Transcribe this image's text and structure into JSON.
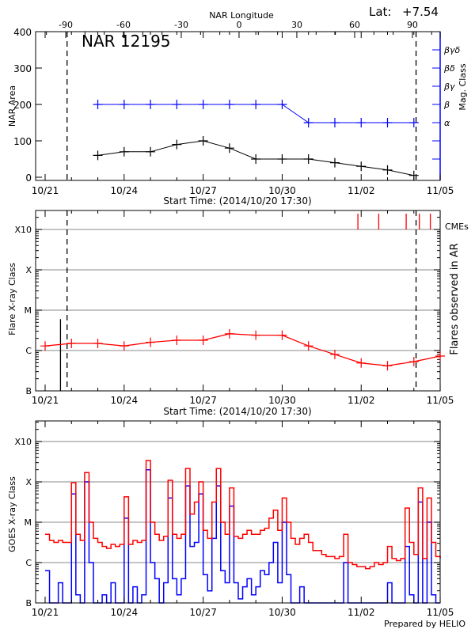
{
  "colors": {
    "axis": "#000000",
    "mag": "#0000ff",
    "flare": "#ff0000",
    "goes_long": "#ff0000",
    "goes_short": "#0000ff",
    "grid": "#a0a0a0"
  },
  "footer": "Prepared by HELIO",
  "chart_data": [
    {
      "type": "line",
      "title": "NAR 12195",
      "latitude_label": "Lat:",
      "latitude_value": "+7.54",
      "top_axis": {
        "label": "NAR Longitude",
        "ticks": [
          -90,
          -60,
          -30,
          0,
          30,
          60,
          90
        ],
        "tick_labels": [
          "-90",
          "-60",
          "-30",
          "0",
          "30",
          "60",
          "90"
        ]
      },
      "xlabel": "Start Time: (2014/10/20 17:30)",
      "x_tick_labels": [
        "10/21",
        "10/24",
        "10/27",
        "10/30",
        "11/02",
        "11/05"
      ],
      "ylabel": "NAR Area",
      "ylim": [
        0,
        400
      ],
      "y_tick_labels": [
        "0",
        "100",
        "200",
        "300",
        "400"
      ],
      "y2label": "Mag. Class",
      "y2_tick_labels": [
        "α",
        "β",
        "βγ",
        "βδ",
        "βγδ"
      ],
      "x": [
        "10/23",
        "10/24",
        "10/25",
        "10/26",
        "10/27",
        "10/28",
        "10/29",
        "10/30",
        "10/31",
        "11/01",
        "11/02",
        "11/03",
        "11/04"
      ],
      "series": [
        {
          "name": "NAR Area",
          "values": [
            60,
            70,
            70,
            90,
            100,
            80,
            50,
            50,
            50,
            40,
            30,
            20,
            5
          ]
        },
        {
          "name": "Mag. Class",
          "values": [
            "β",
            "β",
            "β",
            "β",
            "β",
            "β",
            "β",
            "β",
            "α",
            "α",
            "α",
            "α",
            "α"
          ]
        }
      ],
      "limb_markers": [
        "10/21 20:00",
        "11/04 02:00"
      ]
    },
    {
      "type": "line",
      "xlabel": "Start Time: (2014/10/20 17:30)",
      "x_tick_labels": [
        "10/21",
        "10/24",
        "10/27",
        "10/30",
        "11/02",
        "11/05"
      ],
      "ylabel": "Flare X-ray Class",
      "y2label": "Flares observed in AR",
      "y_scale": "log",
      "y_tick_labels": [
        "B",
        "C",
        "M",
        "X",
        "X10"
      ],
      "grid": true,
      "x": [
        "10/21",
        "10/22",
        "10/23",
        "10/24",
        "10/25",
        "10/26",
        "10/27",
        "10/28",
        "10/29",
        "10/30",
        "10/31",
        "11/01",
        "11/02",
        "11/03",
        "11/04",
        "11/05"
      ],
      "series": [
        {
          "values": [
            "C1.3",
            "C1.5",
            "C1.5",
            "C1.3",
            "C1.6",
            "C1.8",
            "C1.8",
            "C2.6",
            "C2.4",
            "C2.4",
            "C1.3",
            "B8.0",
            "B4.9",
            "B4.2",
            "B5.3",
            "B7.3"
          ]
        }
      ],
      "flares": [
        {
          "time": "10/21 14:00",
          "class": "C6"
        }
      ],
      "cme_label": "CMEs",
      "cmes": [
        "11/01 21:00",
        "11/02 16:00",
        "11/03 17:00",
        "11/04 05:00",
        "11/04 15:00"
      ],
      "limb_markers": [
        "10/21 20:00",
        "11/04 02:00"
      ]
    },
    {
      "type": "line",
      "ylabel": "GOES X-ray Class",
      "y_scale": "log",
      "y_tick_labels": [
        "B",
        "C",
        "M",
        "X",
        "X10"
      ],
      "grid": true,
      "x_tick_labels": [
        "10/21",
        "10/24",
        "10/27",
        "10/30",
        "11/02",
        "11/05"
      ],
      "x_start": "10/21 00:00",
      "x_step_hours": 4,
      "series": [
        {
          "name": "long",
          "log10_flux": [
            -5.3,
            -5.45,
            -5.5,
            -5.45,
            -5.5,
            -5.5,
            -4.02,
            -5.3,
            -5.45,
            -3.77,
            -5.0,
            -5.4,
            -5.5,
            -5.6,
            -5.65,
            -5.55,
            -5.6,
            -5.55,
            -4.37,
            -5.55,
            -5.45,
            -5.5,
            -5.45,
            -3.47,
            -5.0,
            -5.3,
            -5.45,
            -5.35,
            -3.96,
            -5.3,
            -5.4,
            -5.3,
            -3.67,
            -4.8,
            -4.5,
            -4.0,
            -5.2,
            -5.4,
            -4.5,
            -3.67,
            -5.0,
            -5.3,
            -4.15,
            -5.35,
            -5.4,
            -5.3,
            -5.2,
            -5.3,
            -5.3,
            -5.2,
            -5.15,
            -4.9,
            -4.7,
            -5.2,
            -4.4,
            -5.0,
            -5.4,
            -5.55,
            -5.4,
            -5.3,
            -5.5,
            -5.7,
            -5.7,
            -5.8,
            -5.85,
            -5.85,
            -5.9,
            -5.85,
            -5.3,
            -6.0,
            -6.05,
            -6.1,
            -6.1,
            -6.15,
            -6.1,
            -6.0,
            -6.05,
            -6.0,
            -5.6,
            -5.9,
            -5.95,
            -5.9,
            -4.65,
            -5.5,
            -5.8,
            -4.15,
            -5.9,
            -4.4,
            -5.5,
            -5.85,
            -5.9
          ]
        },
        {
          "name": "short",
          "log10_flux": [
            -6.2,
            -7,
            -7,
            -6.5,
            -7,
            -7,
            -4.3,
            -6.8,
            -7,
            -4.0,
            -6.0,
            -7,
            -7,
            -6.8,
            -7,
            -6.5,
            -7,
            -7,
            -4.9,
            -7,
            -6.6,
            -7,
            -6.8,
            -3.7,
            -6.0,
            -6.4,
            -7,
            -6.5,
            -4.4,
            -6.4,
            -6.8,
            -6.4,
            -4.1,
            -5.6,
            -5.5,
            -4.3,
            -6.3,
            -6.7,
            -5.4,
            -4.1,
            -6.2,
            -6.5,
            -4.6,
            -6.5,
            -6.9,
            -6.6,
            -6.4,
            -6.8,
            -6.6,
            -6.2,
            -6.3,
            -6.0,
            -5.5,
            -6.5,
            -5.0,
            -6.3,
            -7,
            -7,
            -6.6,
            -7,
            -7,
            -7,
            -7,
            -7,
            -7,
            -7,
            -7,
            -7,
            -6.0,
            -7,
            -7,
            -7,
            -7,
            -7,
            -7,
            -7,
            -7,
            -7,
            -6.5,
            -7,
            -7,
            -7,
            -5.6,
            -6.8,
            -7,
            -4.5,
            -7,
            -5.0,
            -6.8,
            -7,
            -7
          ]
        }
      ]
    }
  ]
}
